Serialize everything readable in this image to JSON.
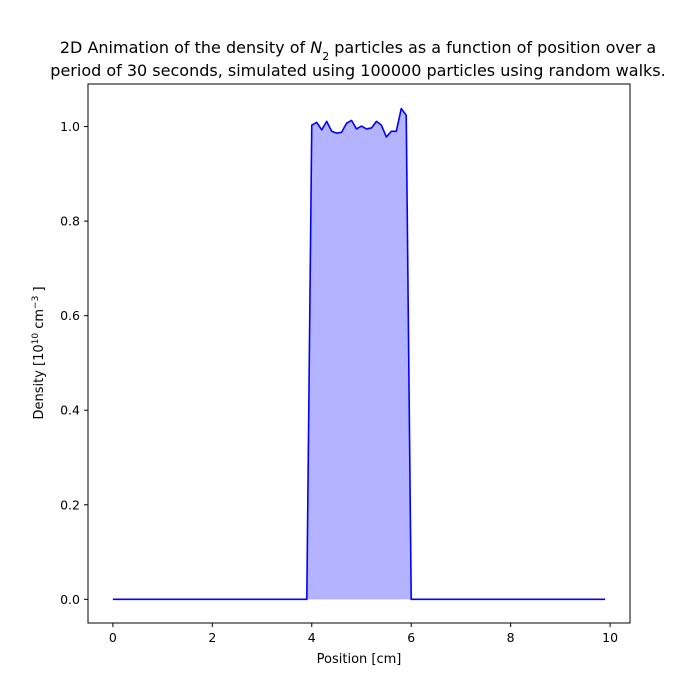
{
  "chart_data": {
    "type": "area",
    "title": {
      "line1_before": "2D Animation of the density of ",
      "line1_var": "N",
      "line1_sub": "2",
      "line1_after": " particles as a function of position over a",
      "line2": "period of 30 seconds, simulated using 100000 particles using random walks."
    },
    "xlabel": "Position [cm]",
    "ylabel": {
      "before": "Density [10",
      "sup1": "10",
      "mid": " cm",
      "sup2": "−3",
      "after": " ]"
    },
    "xlim": [
      -0.5,
      10.4
    ],
    "ylim": [
      -0.05,
      1.09
    ],
    "xticks": [
      0,
      2,
      4,
      6,
      8,
      10
    ],
    "xtick_labels": [
      "0",
      "2",
      "4",
      "6",
      "8",
      "10"
    ],
    "yticks": [
      0.0,
      0.2,
      0.4,
      0.6,
      0.8,
      1.0
    ],
    "ytick_labels": [
      "0.0",
      "0.2",
      "0.4",
      "0.6",
      "0.8",
      "1.0"
    ],
    "grid": false,
    "line_color": "#0000ff",
    "fill_color": "#b3b3ff",
    "series": [
      {
        "x": [
          0,
          1,
          2,
          3,
          3.9,
          4.0,
          4.1,
          4.2,
          4.3,
          4.4,
          4.5,
          4.6,
          4.7,
          4.8,
          4.9,
          5.0,
          5.1,
          5.2,
          5.3,
          5.4,
          5.5,
          5.6,
          5.7,
          5.8,
          5.9,
          6.0,
          7,
          8,
          9,
          9.9
        ],
        "y": [
          0.0,
          0.0,
          0.0,
          0.0,
          0.0,
          1.003,
          1.009,
          0.993,
          1.011,
          0.99,
          0.986,
          0.988,
          1.007,
          1.013,
          0.995,
          1.001,
          0.995,
          0.997,
          1.011,
          1.003,
          0.978,
          0.99,
          0.99,
          1.038,
          1.024,
          0.0,
          0.0,
          0.0,
          0.0,
          0.0
        ]
      }
    ]
  }
}
